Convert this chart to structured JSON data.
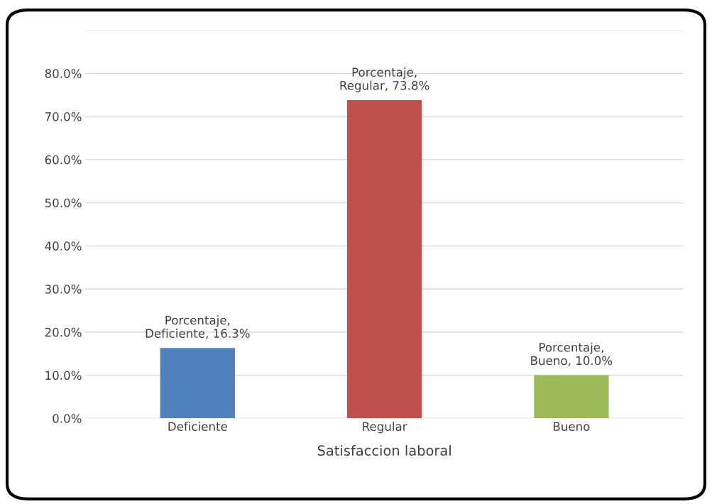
{
  "chart_data": {
    "type": "bar",
    "xlabel": "Satisfaccion laboral",
    "categories": [
      "Deficiente",
      "Regular",
      "Bueno"
    ],
    "values": [
      16.3,
      73.8,
      10.0
    ],
    "colors": [
      "#4f81bd",
      "#c0504d",
      "#9bbb59"
    ],
    "value_labels": [
      "Porcentaje,\nDeficiente, 16.3%",
      "Porcentaje,\nRegular, 73.8%",
      "Porcentaje,\nBueno, 10.0%"
    ],
    "ylim": [
      0,
      90
    ],
    "yticks": [
      {
        "value": 0,
        "label": "0.0%"
      },
      {
        "value": 10,
        "label": "10.0%"
      },
      {
        "value": 20,
        "label": "20.0%"
      },
      {
        "value": 30,
        "label": "30.0%"
      },
      {
        "value": 40,
        "label": "40.0%"
      },
      {
        "value": 50,
        "label": "50.0%"
      },
      {
        "value": 60,
        "label": "60.0%"
      },
      {
        "value": 70,
        "label": "70.0%"
      },
      {
        "value": 80,
        "label": "80.0%"
      },
      {
        "value": 90,
        "label": null
      }
    ],
    "grid": "y"
  }
}
